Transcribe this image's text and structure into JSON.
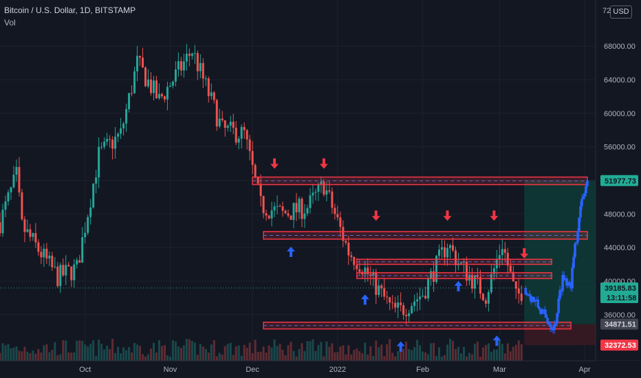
{
  "header": {
    "symbol_title": "Bitcoin / U.S. Dollar, 1D, BITSTAMP",
    "indicator": "Vol",
    "currency_button": "USD",
    "scale_top_label": "72"
  },
  "colors": {
    "background": "#131722",
    "up": "#26a69a",
    "down": "#ef5350",
    "projection": "#2962ff",
    "zone": "#f23645",
    "arrow_down": "#f23645",
    "arrow_up": "#2962ff",
    "profit_box": "#0e3b36",
    "loss_box": "#3a1a22"
  },
  "price_badges": {
    "target": {
      "text": "51977.73",
      "value": 51977.73,
      "bg": "#22ab94",
      "fg": "#131722"
    },
    "current": {
      "text": "39185.83",
      "sub": "13:11:58",
      "value": 39185.83,
      "bg": "#22ab94",
      "fg": "#131722"
    },
    "entry": {
      "text": "34871.51",
      "value": 34871.51,
      "bg": "#434651",
      "fg": "#d1d4dc"
    },
    "stop": {
      "text": "32372.53",
      "value": 32372.53,
      "bg": "#f23645",
      "fg": "#ffffff"
    }
  },
  "chart_data": {
    "type": "candlestick",
    "title": "Bitcoin / U.S. Dollar, 1D, BITSTAMP",
    "y_axis": {
      "ticks": [
        "68000.00",
        "64000.00",
        "60000.00",
        "56000.00",
        "52000.00",
        "48000.00",
        "44000.00",
        "40000.00",
        "36000.00"
      ],
      "tick_values": [
        68000,
        64000,
        60000,
        56000,
        52000,
        48000,
        44000,
        40000,
        36000
      ],
      "range": [
        30500,
        73500
      ]
    },
    "x_axis": {
      "labels": [
        "Oct",
        "Nov",
        "Dec",
        "2022",
        "Feb",
        "Mar",
        "Apr"
      ],
      "label_dates": [
        "2021-10-01",
        "2021-11-01",
        "2021-12-01",
        "2022-01-01",
        "2022-02-01",
        "2022-03-01",
        "2022-04-01"
      ],
      "range": [
        "2021-08-31",
        "2022-04-05"
      ]
    },
    "grid": true,
    "candle_anchors": {
      "dates": [
        "2021-08-31",
        "2021-09-06",
        "2021-09-08",
        "2021-09-21",
        "2021-09-28",
        "2021-10-06",
        "2021-10-14",
        "2021-10-20",
        "2021-10-28",
        "2021-11-09",
        "2021-11-20",
        "2021-11-28",
        "2021-12-04",
        "2021-12-12",
        "2021-12-21",
        "2021-12-27",
        "2022-01-05",
        "2022-01-10",
        "2022-01-21",
        "2022-01-24",
        "2022-02-01",
        "2022-02-10",
        "2022-02-14",
        "2022-02-24",
        "2022-03-02",
        "2022-03-07",
        "2022-03-10"
      ],
      "closes": [
        47000,
        52500,
        46500,
        40500,
        41500,
        55000,
        57500,
        66000,
        61500,
        67500,
        58000,
        57500,
        49000,
        48000,
        48800,
        51500,
        43500,
        41800,
        36500,
        36500,
        38500,
        44500,
        42200,
        38300,
        44500,
        38000,
        39185.83
      ]
    },
    "projection_path": {
      "dates": [
        "2022-03-10",
        "2022-03-14",
        "2022-03-18",
        "2022-03-21",
        "2022-03-24",
        "2022-03-27",
        "2022-03-30",
        "2022-04-02"
      ],
      "values": [
        39185.83,
        37500,
        35500,
        34500,
        40500,
        39800,
        48000,
        51977.73
      ]
    },
    "zones": [
      {
        "from": "2021-12-01",
        "to": "2022-04-02",
        "low": 51500,
        "high": 52400
      },
      {
        "from": "2021-12-05",
        "to": "2022-04-02",
        "low": 45000,
        "high": 45900
      },
      {
        "from": "2022-01-08",
        "to": "2022-03-20",
        "low": 42000,
        "high": 42600
      },
      {
        "from": "2022-01-08",
        "to": "2022-03-20",
        "low": 40300,
        "high": 41000
      },
      {
        "from": "2021-12-05",
        "to": "2022-03-27",
        "low": 34300,
        "high": 35100
      }
    ],
    "down_arrows": [
      {
        "date": "2021-12-09",
        "price": 53800
      },
      {
        "date": "2021-12-27",
        "price": 53800
      },
      {
        "date": "2022-01-15",
        "price": 47600
      },
      {
        "date": "2022-02-10",
        "price": 47600
      },
      {
        "date": "2022-02-27",
        "price": 47600
      },
      {
        "date": "2022-03-10",
        "price": 43100
      }
    ],
    "up_arrows": [
      {
        "date": "2021-12-15",
        "price": 43700
      },
      {
        "date": "2022-01-11",
        "price": 38000
      },
      {
        "date": "2022-01-24",
        "price": 32400
      },
      {
        "date": "2022-02-14",
        "price": 39600
      },
      {
        "date": "2022-02-28",
        "price": 33100
      }
    ],
    "position_box": {
      "from": "2022-03-10",
      "to": "2022-04-05",
      "entry": 34871.51,
      "target": 51977.73,
      "stop": 32372.53
    }
  }
}
